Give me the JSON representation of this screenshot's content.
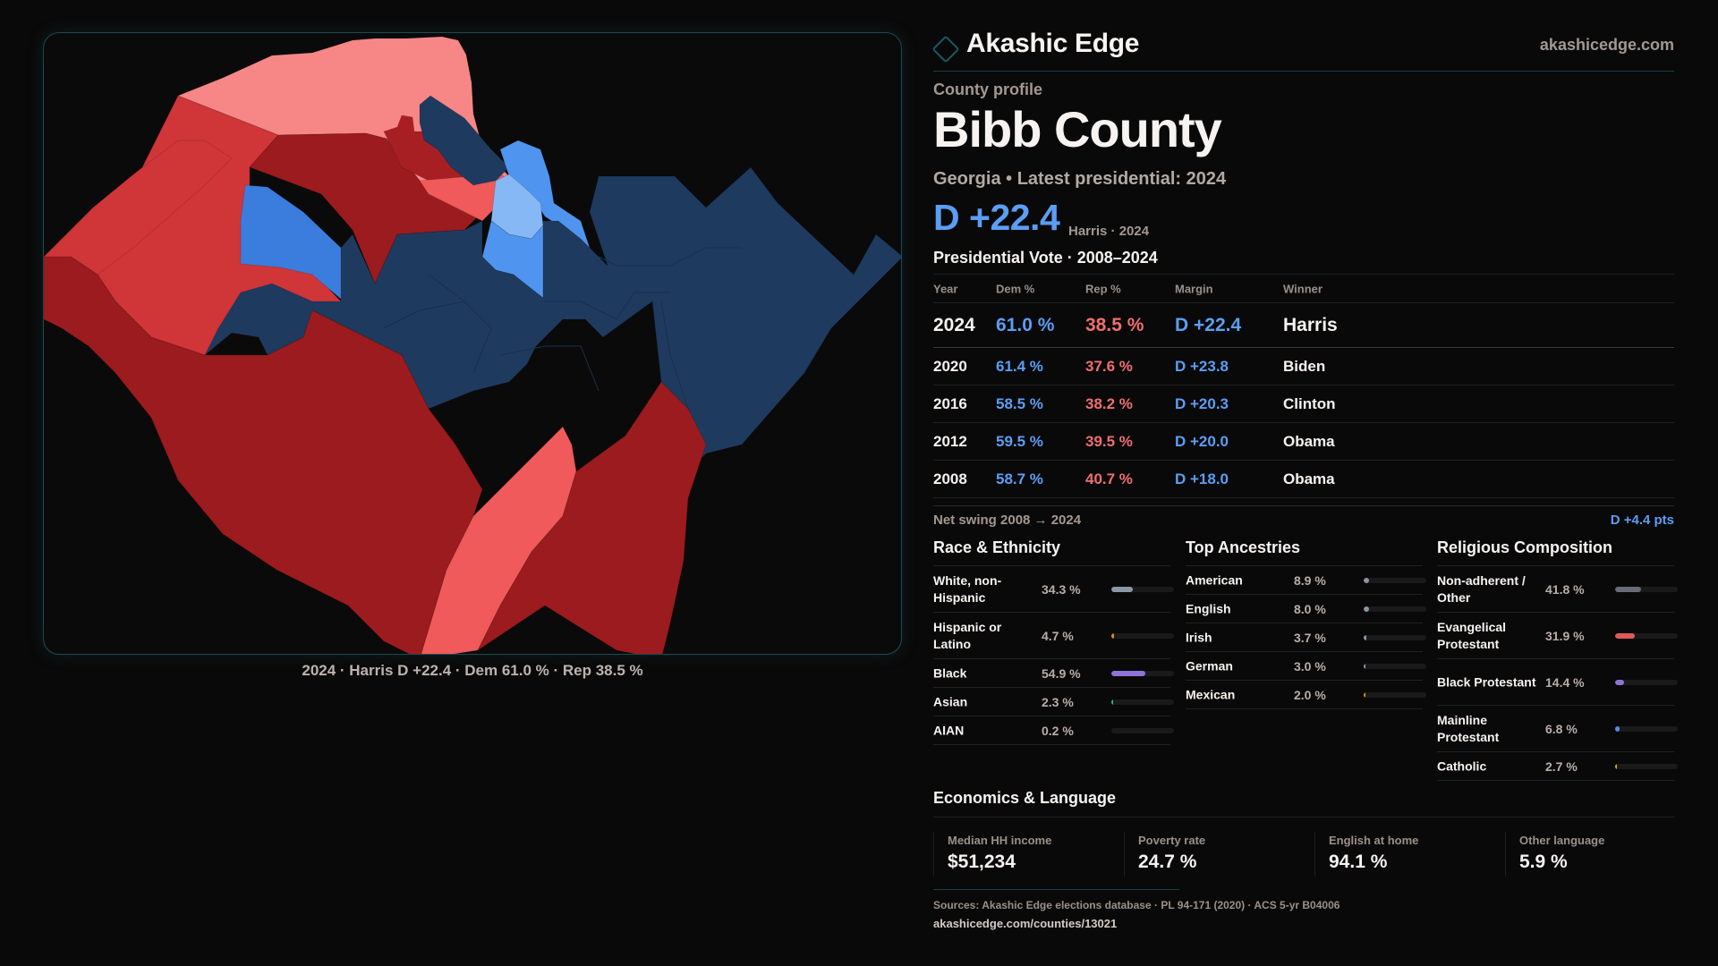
{
  "brand": {
    "name": "Akashic Edge",
    "url": "akashicedge.com",
    "logo_icon": "diamond-icon"
  },
  "profile": {
    "kicker": "County profile",
    "county": "Bibb County",
    "subtitle": "Georgia • Latest presidential: 2024",
    "margin": "D +22.4",
    "margin_note": "Harris · 2024"
  },
  "map": {
    "caption": "2024 · Harris D +22.4 · Dem 61.0 % · Rep 38.5 %",
    "colors": {
      "safe_d": "#1f3a5f",
      "likely_d": "#3b7ddd",
      "lean_d": "#4f95f0",
      "tilt_d": "#86b8f5",
      "safe_r": "#9b1b1e",
      "likely_r": "#a81f23",
      "lean_r": "#d03538",
      "tilt_r": "#f05a5a",
      "weak_r": "#f78787"
    }
  },
  "vote": {
    "title": "Presidential Vote · 2008–2024",
    "headers": {
      "year": "Year",
      "dem": "Dem %",
      "rep": "Rep %",
      "margin": "Margin",
      "winner": "Winner"
    },
    "rows": [
      {
        "year": "2024",
        "dem": "61.0 %",
        "rep": "38.5 %",
        "margin": "D +22.4",
        "winner": "Harris"
      },
      {
        "year": "2020",
        "dem": "61.4 %",
        "rep": "37.6 %",
        "margin": "D +23.8",
        "winner": "Biden"
      },
      {
        "year": "2016",
        "dem": "58.5 %",
        "rep": "38.2 %",
        "margin": "D +20.3",
        "winner": "Clinton"
      },
      {
        "year": "2012",
        "dem": "59.5 %",
        "rep": "39.5 %",
        "margin": "D +20.0",
        "winner": "Obama"
      },
      {
        "year": "2008",
        "dem": "58.7 %",
        "rep": "40.7 %",
        "margin": "D +18.0",
        "winner": "Obama"
      }
    ],
    "swing_label": "Net swing 2008 → 2024",
    "swing_value": "D +4.4 pts"
  },
  "race": {
    "title": "Race & Ethnicity",
    "items": [
      {
        "label": "White, non-Hispanic",
        "value": "34.3 %",
        "pct": 34.3,
        "color": "#8b96a6"
      },
      {
        "label": "Hispanic or Latino",
        "value": "4.7 %",
        "pct": 4.7,
        "color": "#e08a1a"
      },
      {
        "label": "Black",
        "value": "54.9 %",
        "pct": 54.9,
        "color": "#8f73d9"
      },
      {
        "label": "Asian",
        "value": "2.3 %",
        "pct": 2.3,
        "color": "#2fbf8a"
      },
      {
        "label": "AIAN",
        "value": "0.2 %",
        "pct": 0.2,
        "color": "#6b6b6b"
      }
    ]
  },
  "ancestry": {
    "title": "Top Ancestries",
    "items": [
      {
        "label": "American",
        "value": "8.9 %",
        "pct": 8.9,
        "color": "#8b96a6"
      },
      {
        "label": "English",
        "value": "8.0 %",
        "pct": 8.0,
        "color": "#8b96a6"
      },
      {
        "label": "Irish",
        "value": "3.7 %",
        "pct": 3.7,
        "color": "#8b96a6"
      },
      {
        "label": "German",
        "value": "3.0 %",
        "pct": 3.0,
        "color": "#8b96a6"
      },
      {
        "label": "Mexican",
        "value": "2.0 %",
        "pct": 2.0,
        "color": "#e08a1a"
      }
    ]
  },
  "religion": {
    "title": "Religious Composition",
    "items": [
      {
        "label": "Non-adherent / Other",
        "value": "41.8 %",
        "pct": 41.8,
        "color": "#686c78"
      },
      {
        "label": "Evangelical Protestant",
        "value": "31.9 %",
        "pct": 31.9,
        "color": "#e05a5a"
      },
      {
        "label": "Black Protestant",
        "value": "14.4 %",
        "pct": 14.4,
        "color": "#8f73d9"
      },
      {
        "label": "Mainline Protestant",
        "value": "6.8 %",
        "pct": 6.8,
        "color": "#4f8fe6"
      },
      {
        "label": "Catholic",
        "value": "2.7 %",
        "pct": 2.7,
        "color": "#e0a21a"
      }
    ]
  },
  "economics": {
    "title": "Economics & Language",
    "stats": [
      {
        "label": "Median HH income",
        "value": "$51,234"
      },
      {
        "label": "Poverty rate",
        "value": "24.7 %"
      },
      {
        "label": "English at home",
        "value": "94.1 %"
      },
      {
        "label": "Other language",
        "value": "5.9 %"
      }
    ]
  },
  "sources": {
    "text": "Sources: Akashic Edge elections database · PL 94-171 (2020) · ACS 5-yr B04006",
    "url": "akashicedge.com/counties/13021"
  }
}
